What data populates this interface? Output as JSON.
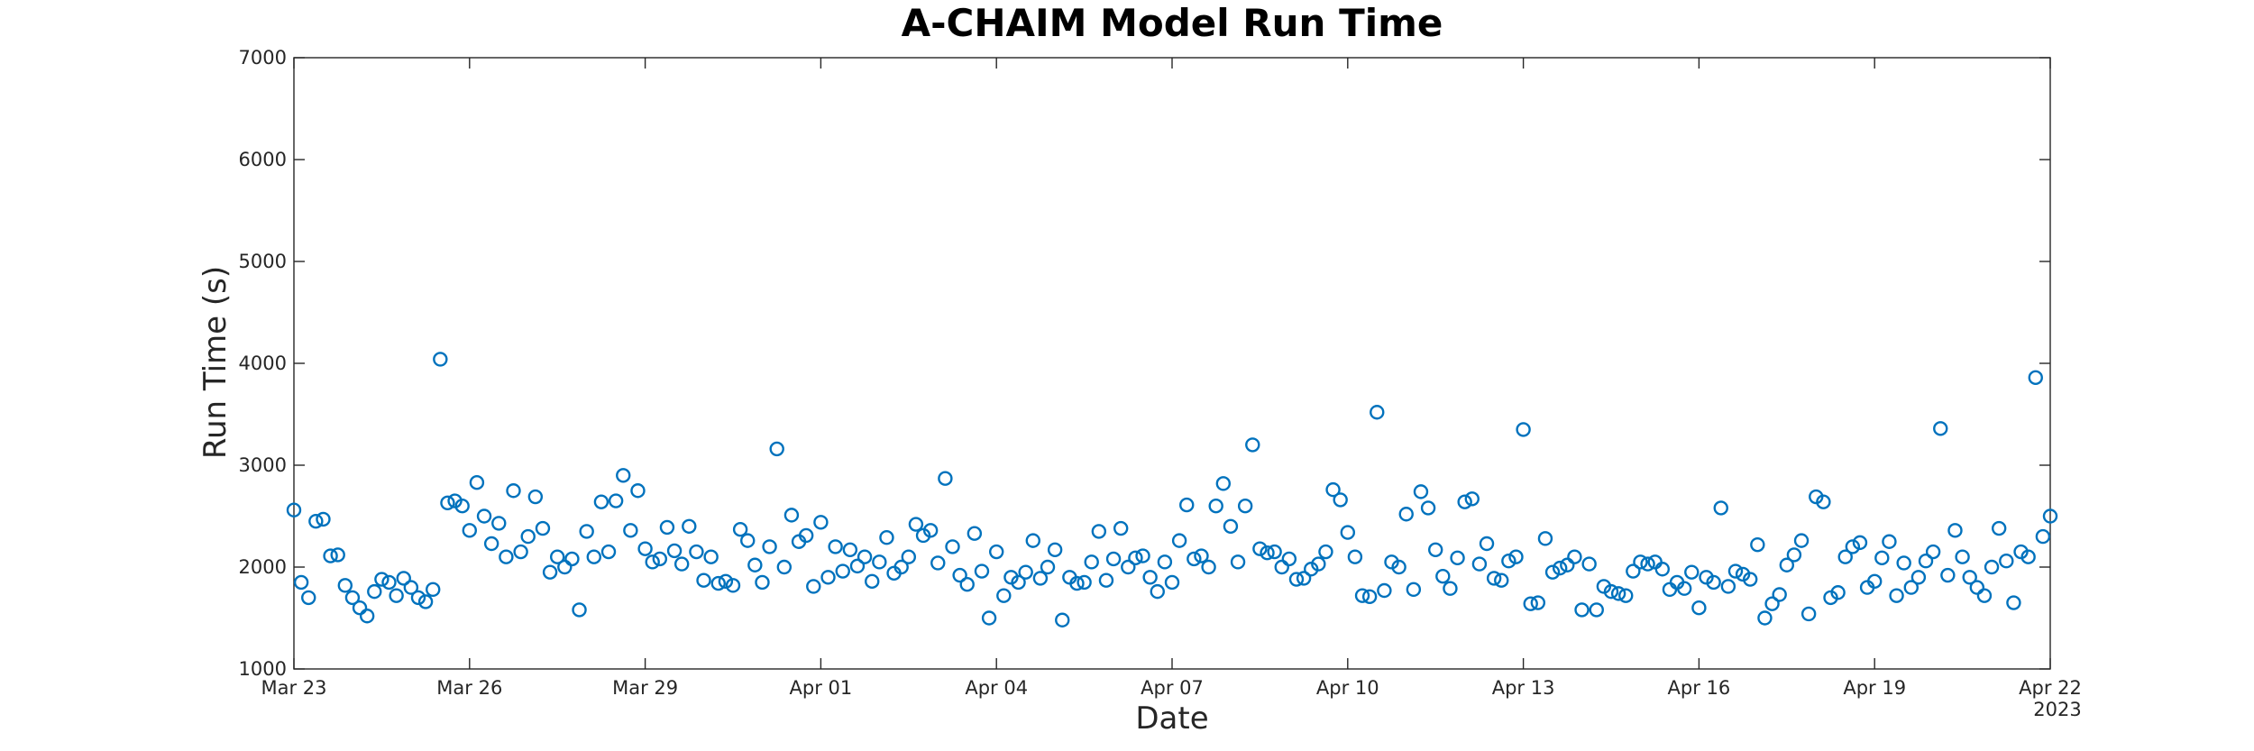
{
  "chart_data": {
    "type": "scatter",
    "title": "A-CHAIM Model Run Time",
    "xlabel": "Date",
    "ylabel": "Run Time (s)",
    "year_label": "2023",
    "x_range": [
      "2023-03-23",
      "2023-04-22"
    ],
    "ylim": [
      1000,
      7000
    ],
    "y_ticks": [
      1000,
      2000,
      3000,
      4000,
      5000,
      6000,
      7000
    ],
    "x_ticks": [
      {
        "date": "2023-03-23",
        "label": "Mar 23"
      },
      {
        "date": "2023-03-26",
        "label": "Mar 26"
      },
      {
        "date": "2023-03-29",
        "label": "Mar 29"
      },
      {
        "date": "2023-04-01",
        "label": "Apr 01"
      },
      {
        "date": "2023-04-04",
        "label": "Apr 04"
      },
      {
        "date": "2023-04-07",
        "label": "Apr 07"
      },
      {
        "date": "2023-04-10",
        "label": "Apr 10"
      },
      {
        "date": "2023-04-13",
        "label": "Apr 13"
      },
      {
        "date": "2023-04-16",
        "label": "Apr 16"
      },
      {
        "date": "2023-04-19",
        "label": "Apr 19"
      },
      {
        "date": "2023-04-22",
        "label": "Apr 22"
      }
    ],
    "grid": false,
    "legend": "none",
    "marker": "circle-open",
    "marker_color": "#0072BD",
    "series": [
      {
        "points": [
          [
            "2023-03-23 00:00",
            2560
          ],
          [
            "2023-03-23 03:00",
            1850
          ],
          [
            "2023-03-23 06:00",
            1700
          ],
          [
            "2023-03-23 09:00",
            2450
          ],
          [
            "2023-03-23 12:00",
            2470
          ],
          [
            "2023-03-23 15:00",
            2110
          ],
          [
            "2023-03-23 18:00",
            2120
          ],
          [
            "2023-03-23 21:00",
            1820
          ],
          [
            "2023-03-24 00:00",
            1700
          ],
          [
            "2023-03-24 03:00",
            1600
          ],
          [
            "2023-03-24 06:00",
            1520
          ],
          [
            "2023-03-24 09:00",
            1760
          ],
          [
            "2023-03-24 12:00",
            1880
          ],
          [
            "2023-03-24 15:00",
            1850
          ],
          [
            "2023-03-24 18:00",
            1720
          ],
          [
            "2023-03-24 21:00",
            1890
          ],
          [
            "2023-03-25 00:00",
            1800
          ],
          [
            "2023-03-25 03:00",
            1700
          ],
          [
            "2023-03-25 06:00",
            1660
          ],
          [
            "2023-03-25 09:00",
            1780
          ],
          [
            "2023-03-25 12:00",
            4040
          ],
          [
            "2023-03-25 15:00",
            2630
          ],
          [
            "2023-03-25 18:00",
            2650
          ],
          [
            "2023-03-25 21:00",
            2600
          ],
          [
            "2023-03-26 00:00",
            2360
          ],
          [
            "2023-03-26 03:00",
            2830
          ],
          [
            "2023-03-26 06:00",
            2500
          ],
          [
            "2023-03-26 09:00",
            2230
          ],
          [
            "2023-03-26 12:00",
            2430
          ],
          [
            "2023-03-26 15:00",
            2100
          ],
          [
            "2023-03-26 18:00",
            2750
          ],
          [
            "2023-03-26 21:00",
            2150
          ],
          [
            "2023-03-27 00:00",
            2300
          ],
          [
            "2023-03-27 03:00",
            2690
          ],
          [
            "2023-03-27 06:00",
            2380
          ],
          [
            "2023-03-27 09:00",
            1950
          ],
          [
            "2023-03-27 12:00",
            2100
          ],
          [
            "2023-03-27 15:00",
            2000
          ],
          [
            "2023-03-27 18:00",
            2080
          ],
          [
            "2023-03-27 21:00",
            1580
          ],
          [
            "2023-03-28 00:00",
            2350
          ],
          [
            "2023-03-28 03:00",
            2100
          ],
          [
            "2023-03-28 06:00",
            2640
          ],
          [
            "2023-03-28 09:00",
            2150
          ],
          [
            "2023-03-28 12:00",
            2650
          ],
          [
            "2023-03-28 15:00",
            2900
          ],
          [
            "2023-03-28 18:00",
            2360
          ],
          [
            "2023-03-28 21:00",
            2750
          ],
          [
            "2023-03-29 00:00",
            2180
          ],
          [
            "2023-03-29 03:00",
            2050
          ],
          [
            "2023-03-29 06:00",
            2080
          ],
          [
            "2023-03-29 09:00",
            2390
          ],
          [
            "2023-03-29 12:00",
            2160
          ],
          [
            "2023-03-29 15:00",
            2030
          ],
          [
            "2023-03-29 18:00",
            2400
          ],
          [
            "2023-03-29 21:00",
            2150
          ],
          [
            "2023-03-30 00:00",
            1870
          ],
          [
            "2023-03-30 03:00",
            2100
          ],
          [
            "2023-03-30 06:00",
            1840
          ],
          [
            "2023-03-30 09:00",
            1860
          ],
          [
            "2023-03-30 12:00",
            1820
          ],
          [
            "2023-03-30 15:00",
            2370
          ],
          [
            "2023-03-30 18:00",
            2260
          ],
          [
            "2023-03-30 21:00",
            2020
          ],
          [
            "2023-03-31 00:00",
            1850
          ],
          [
            "2023-03-31 03:00",
            2200
          ],
          [
            "2023-03-31 06:00",
            3160
          ],
          [
            "2023-03-31 09:00",
            2000
          ],
          [
            "2023-03-31 12:00",
            2510
          ],
          [
            "2023-03-31 15:00",
            2250
          ],
          [
            "2023-03-31 18:00",
            2310
          ],
          [
            "2023-03-31 21:00",
            1810
          ],
          [
            "2023-04-01 00:00",
            2440
          ],
          [
            "2023-04-01 03:00",
            1900
          ],
          [
            "2023-04-01 06:00",
            2200
          ],
          [
            "2023-04-01 09:00",
            1960
          ],
          [
            "2023-04-01 12:00",
            2170
          ],
          [
            "2023-04-01 15:00",
            2010
          ],
          [
            "2023-04-01 18:00",
            2100
          ],
          [
            "2023-04-01 21:00",
            1860
          ],
          [
            "2023-04-02 00:00",
            2050
          ],
          [
            "2023-04-02 03:00",
            2290
          ],
          [
            "2023-04-02 06:00",
            1940
          ],
          [
            "2023-04-02 09:00",
            2000
          ],
          [
            "2023-04-02 12:00",
            2100
          ],
          [
            "2023-04-02 15:00",
            2420
          ],
          [
            "2023-04-02 18:00",
            2310
          ],
          [
            "2023-04-02 21:00",
            2360
          ],
          [
            "2023-04-03 00:00",
            2040
          ],
          [
            "2023-04-03 03:00",
            2870
          ],
          [
            "2023-04-03 06:00",
            2200
          ],
          [
            "2023-04-03 09:00",
            1920
          ],
          [
            "2023-04-03 12:00",
            1830
          ],
          [
            "2023-04-03 15:00",
            2330
          ],
          [
            "2023-04-03 18:00",
            1960
          ],
          [
            "2023-04-03 21:00",
            1500
          ],
          [
            "2023-04-04 00:00",
            2150
          ],
          [
            "2023-04-04 03:00",
            1720
          ],
          [
            "2023-04-04 06:00",
            1900
          ],
          [
            "2023-04-04 09:00",
            1850
          ],
          [
            "2023-04-04 12:00",
            1950
          ],
          [
            "2023-04-04 15:00",
            2260
          ],
          [
            "2023-04-04 18:00",
            1890
          ],
          [
            "2023-04-04 21:00",
            2000
          ],
          [
            "2023-04-05 00:00",
            2170
          ],
          [
            "2023-04-05 03:00",
            1480
          ],
          [
            "2023-04-05 06:00",
            1900
          ],
          [
            "2023-04-05 09:00",
            1840
          ],
          [
            "2023-04-05 12:00",
            1850
          ],
          [
            "2023-04-05 15:00",
            2050
          ],
          [
            "2023-04-05 18:00",
            2350
          ],
          [
            "2023-04-05 21:00",
            1870
          ],
          [
            "2023-04-06 00:00",
            2080
          ],
          [
            "2023-04-06 03:00",
            2380
          ],
          [
            "2023-04-06 06:00",
            2000
          ],
          [
            "2023-04-06 09:00",
            2090
          ],
          [
            "2023-04-06 12:00",
            2110
          ],
          [
            "2023-04-06 15:00",
            1900
          ],
          [
            "2023-04-06 18:00",
            1760
          ],
          [
            "2023-04-06 21:00",
            2050
          ],
          [
            "2023-04-07 00:00",
            1850
          ],
          [
            "2023-04-07 03:00",
            2260
          ],
          [
            "2023-04-07 06:00",
            2610
          ],
          [
            "2023-04-07 09:00",
            2080
          ],
          [
            "2023-04-07 12:00",
            2110
          ],
          [
            "2023-04-07 15:00",
            2000
          ],
          [
            "2023-04-07 18:00",
            2600
          ],
          [
            "2023-04-07 21:00",
            2820
          ],
          [
            "2023-04-08 00:00",
            2400
          ],
          [
            "2023-04-08 03:00",
            2050
          ],
          [
            "2023-04-08 06:00",
            2600
          ],
          [
            "2023-04-08 09:00",
            3200
          ],
          [
            "2023-04-08 12:00",
            2180
          ],
          [
            "2023-04-08 15:00",
            2140
          ],
          [
            "2023-04-08 18:00",
            2150
          ],
          [
            "2023-04-08 21:00",
            2000
          ],
          [
            "2023-04-09 00:00",
            2080
          ],
          [
            "2023-04-09 03:00",
            1880
          ],
          [
            "2023-04-09 06:00",
            1890
          ],
          [
            "2023-04-09 09:00",
            1980
          ],
          [
            "2023-04-09 12:00",
            2030
          ],
          [
            "2023-04-09 15:00",
            2150
          ],
          [
            "2023-04-09 18:00",
            2760
          ],
          [
            "2023-04-09 21:00",
            2660
          ],
          [
            "2023-04-10 00:00",
            2340
          ],
          [
            "2023-04-10 03:00",
            2100
          ],
          [
            "2023-04-10 06:00",
            1720
          ],
          [
            "2023-04-10 09:00",
            1710
          ],
          [
            "2023-04-10 12:00",
            3520
          ],
          [
            "2023-04-10 15:00",
            1770
          ],
          [
            "2023-04-10 18:00",
            2050
          ],
          [
            "2023-04-10 21:00",
            2000
          ],
          [
            "2023-04-11 00:00",
            2520
          ],
          [
            "2023-04-11 03:00",
            1780
          ],
          [
            "2023-04-11 06:00",
            2740
          ],
          [
            "2023-04-11 09:00",
            2580
          ],
          [
            "2023-04-11 12:00",
            2170
          ],
          [
            "2023-04-11 15:00",
            1910
          ],
          [
            "2023-04-11 18:00",
            1790
          ],
          [
            "2023-04-11 21:00",
            2090
          ],
          [
            "2023-04-12 00:00",
            2640
          ],
          [
            "2023-04-12 03:00",
            2670
          ],
          [
            "2023-04-12 06:00",
            2030
          ],
          [
            "2023-04-12 09:00",
            2230
          ],
          [
            "2023-04-12 12:00",
            1890
          ],
          [
            "2023-04-12 15:00",
            1870
          ],
          [
            "2023-04-12 18:00",
            2060
          ],
          [
            "2023-04-12 21:00",
            2100
          ],
          [
            "2023-04-13 00:00",
            3350
          ],
          [
            "2023-04-13 03:00",
            1640
          ],
          [
            "2023-04-13 06:00",
            1650
          ],
          [
            "2023-04-13 09:00",
            2280
          ],
          [
            "2023-04-13 12:00",
            1950
          ],
          [
            "2023-04-13 15:00",
            1990
          ],
          [
            "2023-04-13 18:00",
            2020
          ],
          [
            "2023-04-13 21:00",
            2100
          ],
          [
            "2023-04-14 00:00",
            1580
          ],
          [
            "2023-04-14 03:00",
            2030
          ],
          [
            "2023-04-14 06:00",
            1580
          ],
          [
            "2023-04-14 09:00",
            1810
          ],
          [
            "2023-04-14 12:00",
            1760
          ],
          [
            "2023-04-14 15:00",
            1740
          ],
          [
            "2023-04-14 18:00",
            1720
          ],
          [
            "2023-04-14 21:00",
            1960
          ],
          [
            "2023-04-15 00:00",
            2050
          ],
          [
            "2023-04-15 03:00",
            2030
          ],
          [
            "2023-04-15 06:00",
            2050
          ],
          [
            "2023-04-15 09:00",
            1980
          ],
          [
            "2023-04-15 12:00",
            1780
          ],
          [
            "2023-04-15 15:00",
            1850
          ],
          [
            "2023-04-15 18:00",
            1790
          ],
          [
            "2023-04-15 21:00",
            1950
          ],
          [
            "2023-04-16 00:00",
            1600
          ],
          [
            "2023-04-16 03:00",
            1900
          ],
          [
            "2023-04-16 06:00",
            1850
          ],
          [
            "2023-04-16 09:00",
            2580
          ],
          [
            "2023-04-16 12:00",
            1810
          ],
          [
            "2023-04-16 15:00",
            1960
          ],
          [
            "2023-04-16 18:00",
            1930
          ],
          [
            "2023-04-16 21:00",
            1880
          ],
          [
            "2023-04-17 00:00",
            2220
          ],
          [
            "2023-04-17 03:00",
            1500
          ],
          [
            "2023-04-17 06:00",
            1640
          ],
          [
            "2023-04-17 09:00",
            1730
          ],
          [
            "2023-04-17 12:00",
            2020
          ],
          [
            "2023-04-17 15:00",
            2120
          ],
          [
            "2023-04-17 18:00",
            2260
          ],
          [
            "2023-04-17 21:00",
            1540
          ],
          [
            "2023-04-18 00:00",
            2690
          ],
          [
            "2023-04-18 03:00",
            2640
          ],
          [
            "2023-04-18 06:00",
            1700
          ],
          [
            "2023-04-18 09:00",
            1750
          ],
          [
            "2023-04-18 12:00",
            2100
          ],
          [
            "2023-04-18 15:00",
            2200
          ],
          [
            "2023-04-18 18:00",
            2240
          ],
          [
            "2023-04-18 21:00",
            1800
          ],
          [
            "2023-04-19 00:00",
            1860
          ],
          [
            "2023-04-19 03:00",
            2090
          ],
          [
            "2023-04-19 06:00",
            2250
          ],
          [
            "2023-04-19 09:00",
            1720
          ],
          [
            "2023-04-19 12:00",
            2040
          ],
          [
            "2023-04-19 15:00",
            1800
          ],
          [
            "2023-04-19 18:00",
            1900
          ],
          [
            "2023-04-19 21:00",
            2060
          ],
          [
            "2023-04-20 00:00",
            2150
          ],
          [
            "2023-04-20 03:00",
            3360
          ],
          [
            "2023-04-20 06:00",
            1920
          ],
          [
            "2023-04-20 09:00",
            2360
          ],
          [
            "2023-04-20 12:00",
            2100
          ],
          [
            "2023-04-20 15:00",
            1900
          ],
          [
            "2023-04-20 18:00",
            1800
          ],
          [
            "2023-04-20 21:00",
            1720
          ],
          [
            "2023-04-21 00:00",
            2000
          ],
          [
            "2023-04-21 03:00",
            2380
          ],
          [
            "2023-04-21 06:00",
            2060
          ],
          [
            "2023-04-21 09:00",
            1650
          ],
          [
            "2023-04-21 12:00",
            2150
          ],
          [
            "2023-04-21 15:00",
            2100
          ],
          [
            "2023-04-21 18:00",
            3860
          ],
          [
            "2023-04-21 21:00",
            2300
          ],
          [
            "2023-04-22 00:00",
            2500
          ]
        ]
      }
    ]
  }
}
